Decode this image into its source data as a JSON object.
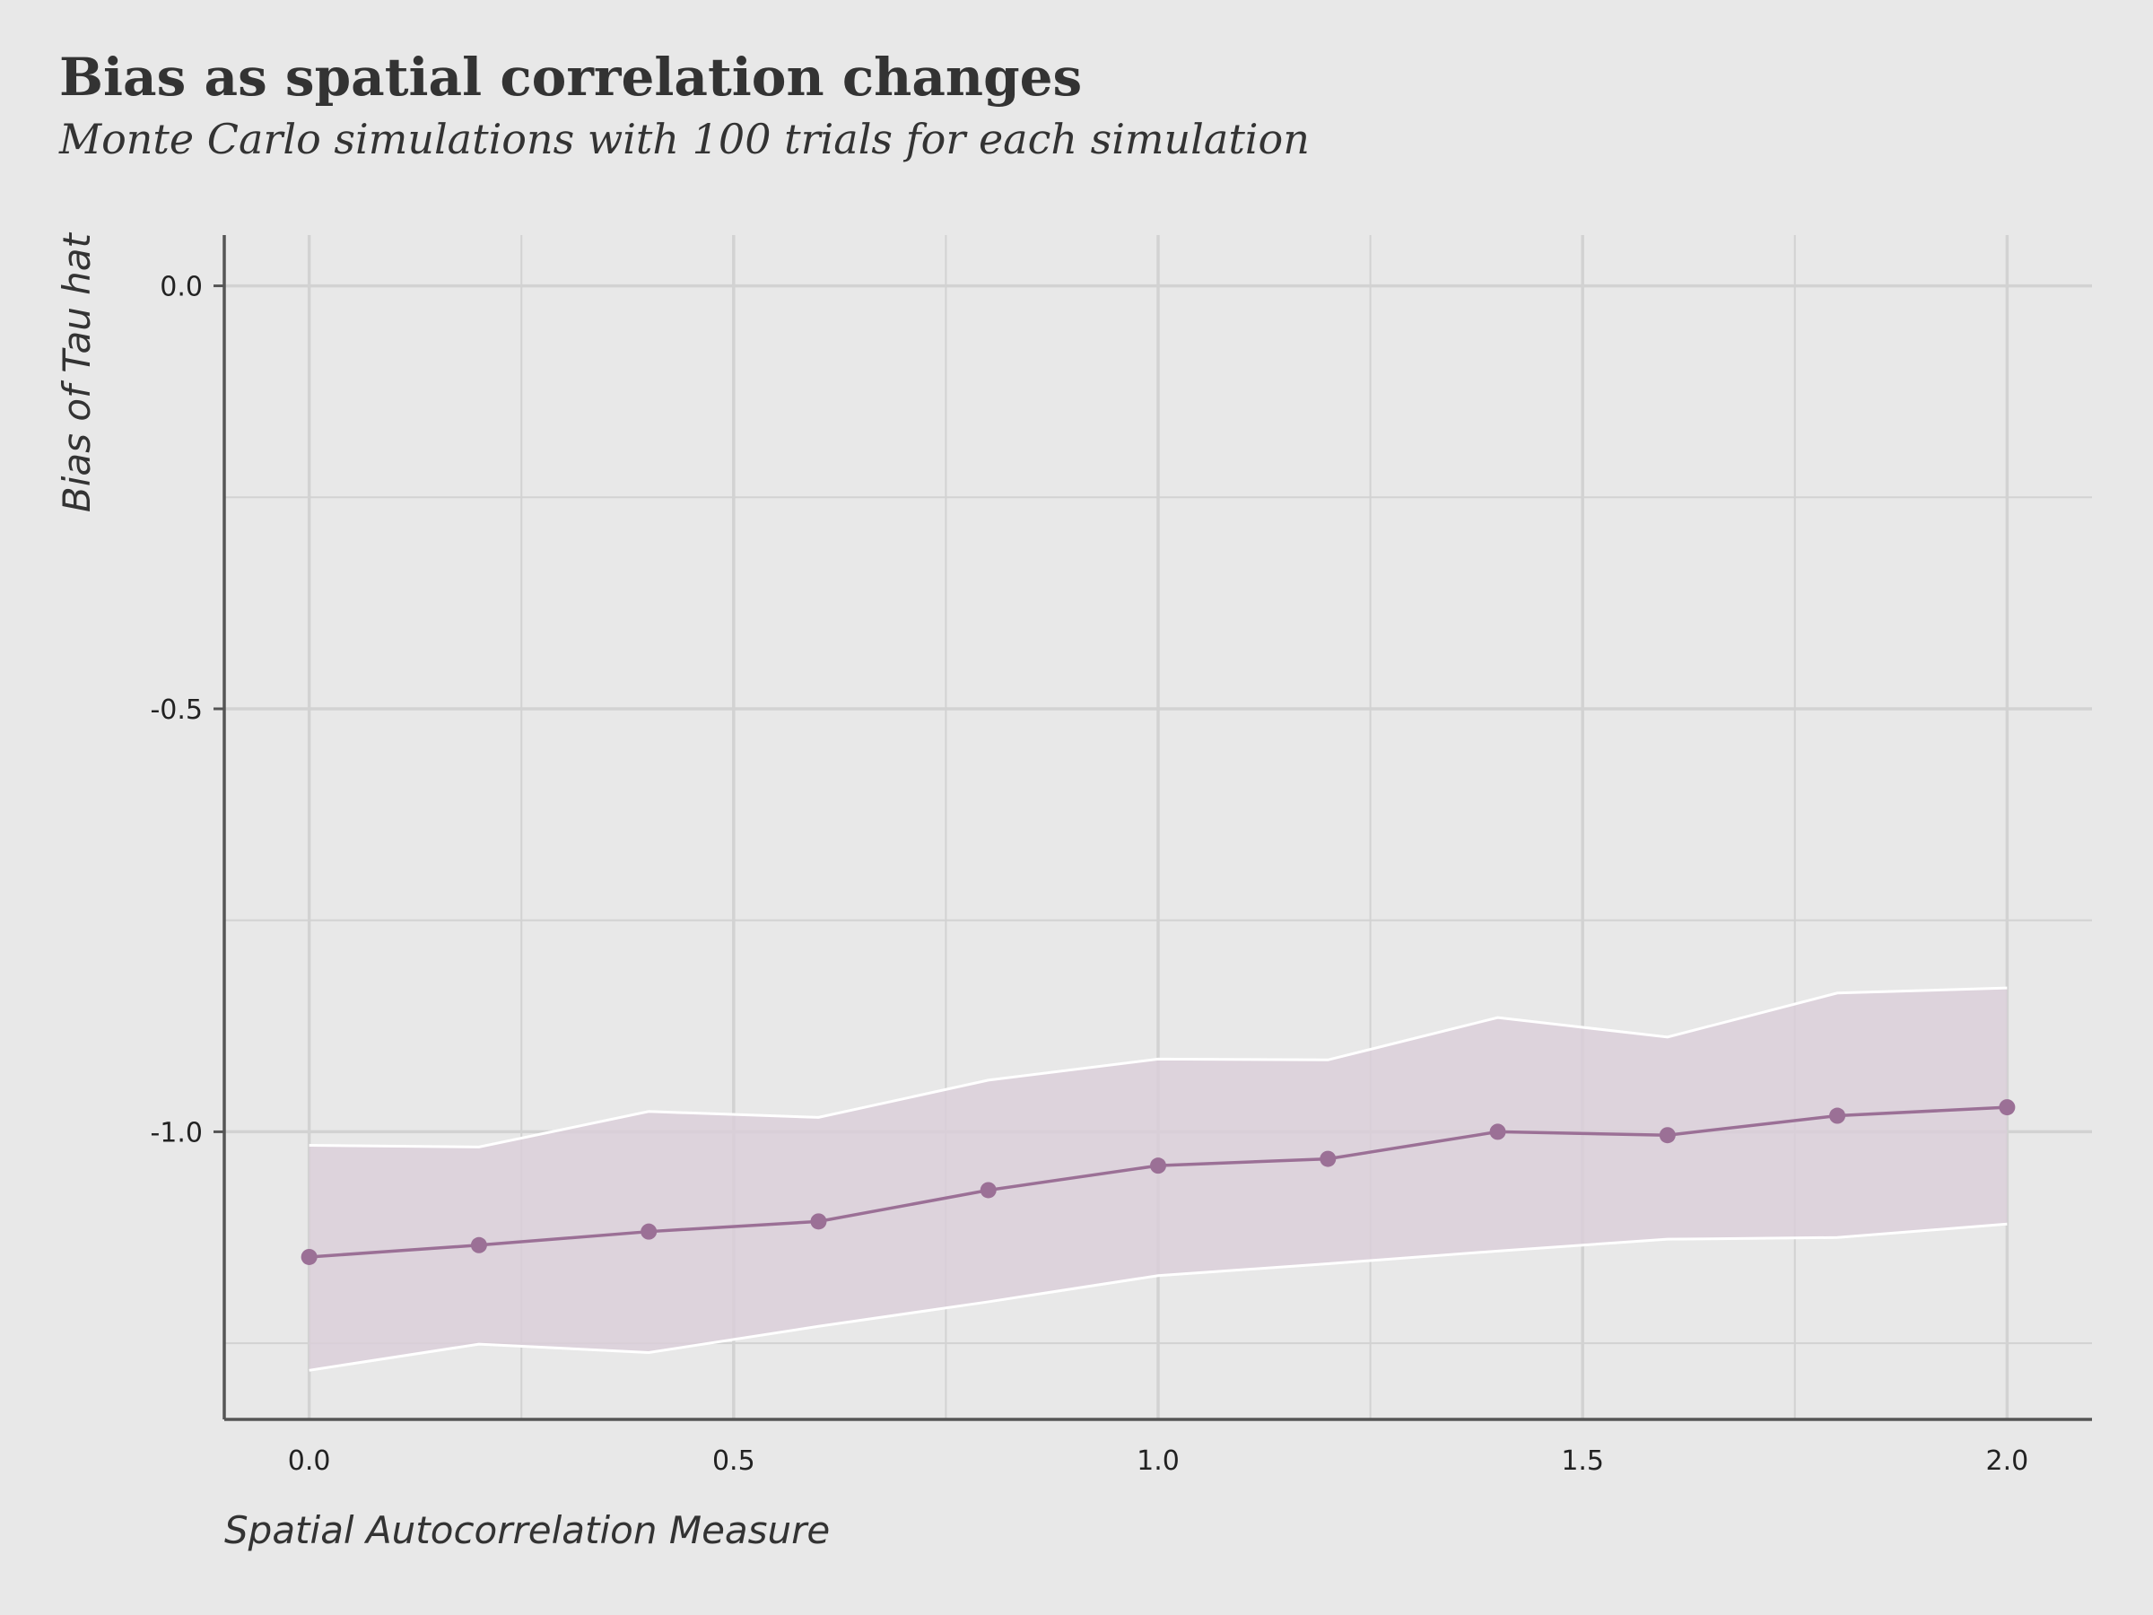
{
  "header": {
    "title": "Bias as spatial correlation changes",
    "subtitle": "Monte Carlo simulations with 100 trials for each simulation"
  },
  "colors": {
    "background": "#e8e8e8",
    "grid": "#d2d2d2",
    "axis": "#555555",
    "line": "#9b7096",
    "ribbon_fill": "#dbcfd9",
    "ribbon_edge": "#ffffff"
  },
  "chart_data": {
    "type": "line",
    "title": "Bias as spatial correlation changes",
    "subtitle": "Monte Carlo simulations with 100 trials for each simulation",
    "xlabel": "Spatial Autocorrelation Measure",
    "ylabel": "Bias of Tau hat",
    "xlim": [
      -0.1,
      2.1
    ],
    "ylim": [
      -1.34,
      0.06
    ],
    "x_ticks": [
      0.0,
      0.5,
      1.0,
      1.5,
      2.0
    ],
    "x_tick_labels": [
      "0.0",
      "0.5",
      "1.0",
      "1.5",
      "2.0"
    ],
    "y_ticks": [
      0.0,
      -0.5,
      -1.0
    ],
    "y_tick_labels": [
      "0.0",
      "-0.5",
      "-1.0"
    ],
    "grid": true,
    "x": [
      0.0,
      0.2,
      0.4,
      0.6,
      0.8,
      1.0,
      1.2,
      1.4,
      1.6,
      1.8,
      2.0
    ],
    "series": [
      {
        "values": [
          -1.148,
          -1.134,
          -1.118,
          -1.106,
          -1.069,
          -1.04,
          -1.032,
          -1.0,
          -1.004,
          -0.981,
          -0.971
        ]
      }
    ],
    "ribbon": {
      "upper": [
        -1.016,
        -1.018,
        -0.976,
        -0.983,
        -0.939,
        -0.914,
        -0.915,
        -0.865,
        -0.888,
        -0.836,
        -0.83
      ],
      "lower": [
        -1.282,
        -1.251,
        -1.261,
        -1.23,
        -1.201,
        -1.17,
        -1.156,
        -1.141,
        -1.127,
        -1.125,
        -1.109
      ]
    }
  }
}
